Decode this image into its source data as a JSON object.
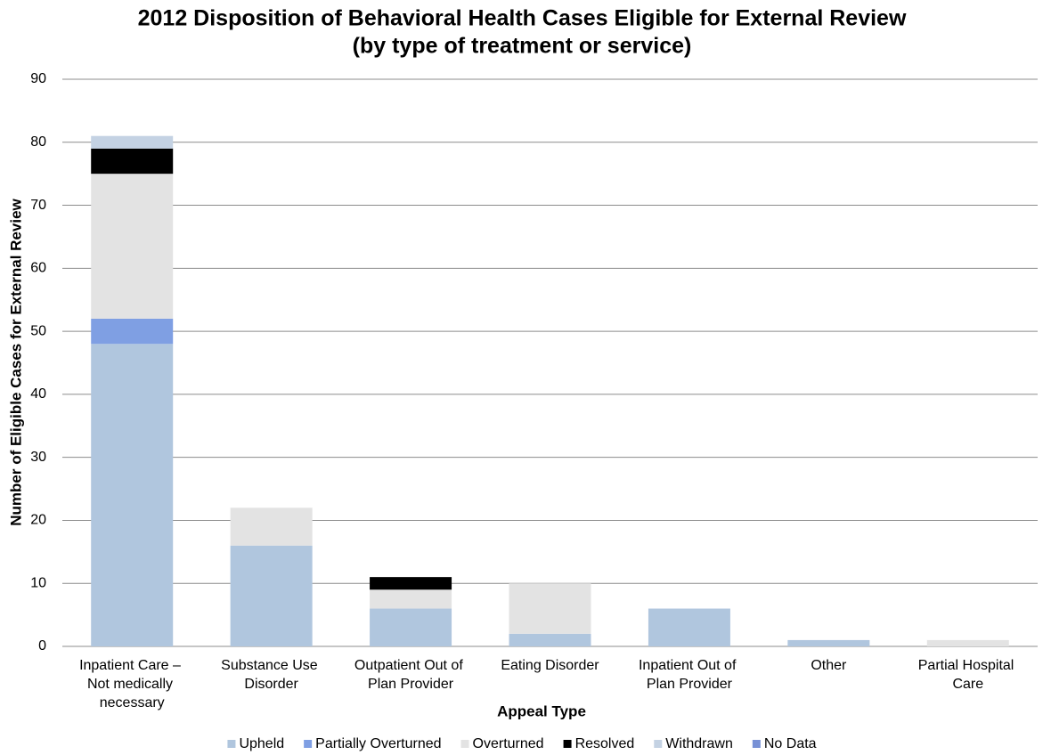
{
  "chart_data": {
    "type": "stacked_bar",
    "title": "2012 Disposition of Behavioral Health Cases Eligible for External Review",
    "subtitle": "(by type of treatment or service)",
    "x_label": "Appeal Type",
    "y_label": "Number of Eligible Cases for External Review",
    "categories": [
      "Inpatient Care – Not medically necessary",
      "Substance Use Disorder",
      "Outpatient Out of Plan Provider",
      "Eating Disorder",
      "Inpatient Out of Plan Provider",
      "Other",
      "Partial Hospital Care"
    ],
    "series": [
      {
        "name": "Upheld",
        "color": "#b0c6de",
        "values": [
          48,
          16,
          6,
          2,
          6,
          1,
          0
        ]
      },
      {
        "name": "Partially Overturned",
        "color": "#7f9fe3",
        "values": [
          4,
          0,
          0,
          0,
          0,
          0,
          0
        ]
      },
      {
        "name": "Overturned",
        "color": "#e3e3e3",
        "values": [
          23,
          6,
          3,
          8,
          0,
          0,
          1
        ]
      },
      {
        "name": "Resolved",
        "color": "#000000",
        "values": [
          4,
          0,
          2,
          0,
          0,
          0,
          0
        ]
      },
      {
        "name": "Withdrawn",
        "color": "#c4d2e3",
        "values": [
          2,
          0,
          0,
          0,
          0,
          0,
          0
        ]
      },
      {
        "name": "No Data",
        "color": "#7891d6",
        "values": [
          0,
          0,
          0,
          0,
          0,
          0,
          0
        ]
      }
    ],
    "ylim": [
      0,
      90
    ],
    "yticks": [
      0,
      10,
      20,
      30,
      40,
      50,
      60,
      70,
      80,
      90
    ],
    "grid": true,
    "legend": "bottom"
  }
}
